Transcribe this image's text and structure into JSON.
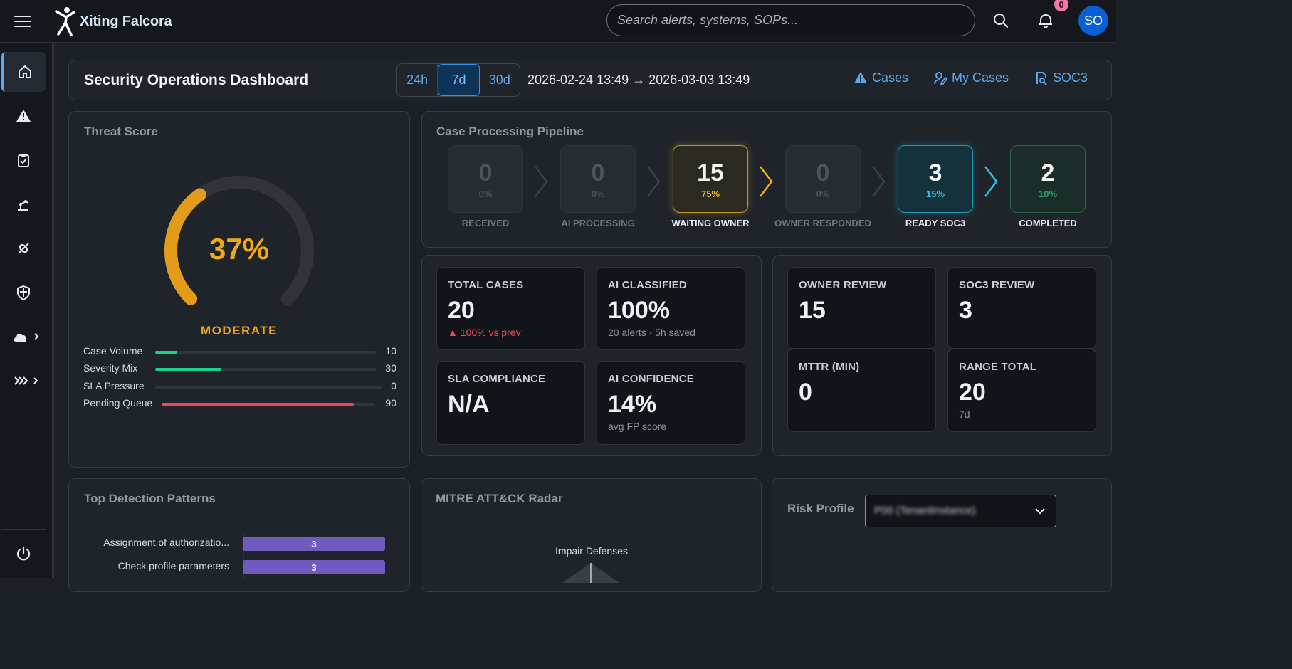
{
  "app": {
    "name": "Xiting Falcora"
  },
  "search": {
    "placeholder": "Search alerts, systems, SOPs..."
  },
  "notifications": {
    "count": "0"
  },
  "user": {
    "initials": "SO"
  },
  "sidebar": {
    "items": [
      {
        "icon": "home-icon",
        "active": true
      },
      {
        "icon": "alert-triangle-icon"
      },
      {
        "icon": "clipboard-check-icon"
      },
      {
        "icon": "robot-arm-icon"
      },
      {
        "icon": "link-icon"
      },
      {
        "icon": "shield-icon"
      },
      {
        "icon": "cloud-user-icon",
        "expandable": true
      },
      {
        "icon": "pipeline-chevrons-icon",
        "expandable": true
      }
    ],
    "bottom": {
      "icon": "power-icon"
    }
  },
  "header": {
    "title": "Security Operations Dashboard",
    "ranges": [
      "24h",
      "7d",
      "30d"
    ],
    "selected_range": "7d",
    "range_text": "2026-02-24 13:49 → 2026-03-03 13:49",
    "links": [
      {
        "label": "Cases",
        "icon": "warning-icon"
      },
      {
        "label": "My Cases",
        "icon": "user-edit-icon"
      },
      {
        "label": "SOC3",
        "icon": "doc-search-icon"
      }
    ]
  },
  "threat": {
    "title": "Threat Score",
    "score_text": "37%",
    "score_fraction": 0.37,
    "level": "MODERATE",
    "metrics": [
      {
        "name": "Case Volume",
        "value": "10",
        "level": 0.1,
        "color": "#19d38a"
      },
      {
        "name": "Severity Mix",
        "value": "30",
        "level": 0.3,
        "color": "#19d38a"
      },
      {
        "name": "SLA Pressure",
        "value": "0",
        "level": 0,
        "color": "#19d38a"
      },
      {
        "name": "Pending Queue",
        "value": "90",
        "level": 0.9,
        "color": "#f0465a"
      }
    ]
  },
  "pipeline": {
    "title": "Case Processing Pipeline",
    "stages": [
      {
        "count": "0",
        "pct": "0%",
        "name": "RECEIVED"
      },
      {
        "count": "0",
        "pct": "0%",
        "name": "AI PROCESSING"
      },
      {
        "count": "15",
        "pct": "75%",
        "name": "WAITING OWNER"
      },
      {
        "count": "0",
        "pct": "0%",
        "name": "OWNER RESPONDED"
      },
      {
        "count": "3",
        "pct": "15%",
        "name": "READY SOC3"
      },
      {
        "count": "2",
        "pct": "10%",
        "name": "COMPLETED"
      }
    ]
  },
  "stats": {
    "total_cases": {
      "label": "TOTAL CASES",
      "value": "20",
      "sub": "▲ 100% vs prev"
    },
    "ai_classified": {
      "label": "AI CLASSIFIED",
      "value": "100%",
      "sub": "20 alerts · 5h saved"
    },
    "sla_compliance": {
      "label": "SLA COMPLIANCE",
      "value": "N/A"
    },
    "ai_confidence": {
      "label": "AI CONFIDENCE",
      "value": "14%",
      "sub": "avg FP score"
    },
    "owner_review": {
      "label": "OWNER REVIEW",
      "value": "15"
    },
    "soc3_review": {
      "label": "SOC3 REVIEW",
      "value": "3"
    },
    "mttr": {
      "label": "MTTR (MIN)",
      "value": "0"
    },
    "range_total": {
      "label": "RANGE TOTAL",
      "value": "20",
      "sub": "7d"
    }
  },
  "detection": {
    "title": "Top Detection Patterns",
    "chart_data": {
      "type": "bar",
      "categories": [
        "Assignment of authorizatio...",
        "Check profile parameters"
      ],
      "values": [
        3,
        3
      ]
    }
  },
  "mitre": {
    "title": "MITRE ATT&CK Radar",
    "axis_labels": [
      "Impair Defenses"
    ]
  },
  "risk": {
    "title": "Risk Profile",
    "selected": "P00 (TenantInstance)"
  },
  "colors": {
    "accent": "#5ba8ef",
    "gauge": "#e39c1a",
    "bar": "#6f5bc0"
  }
}
